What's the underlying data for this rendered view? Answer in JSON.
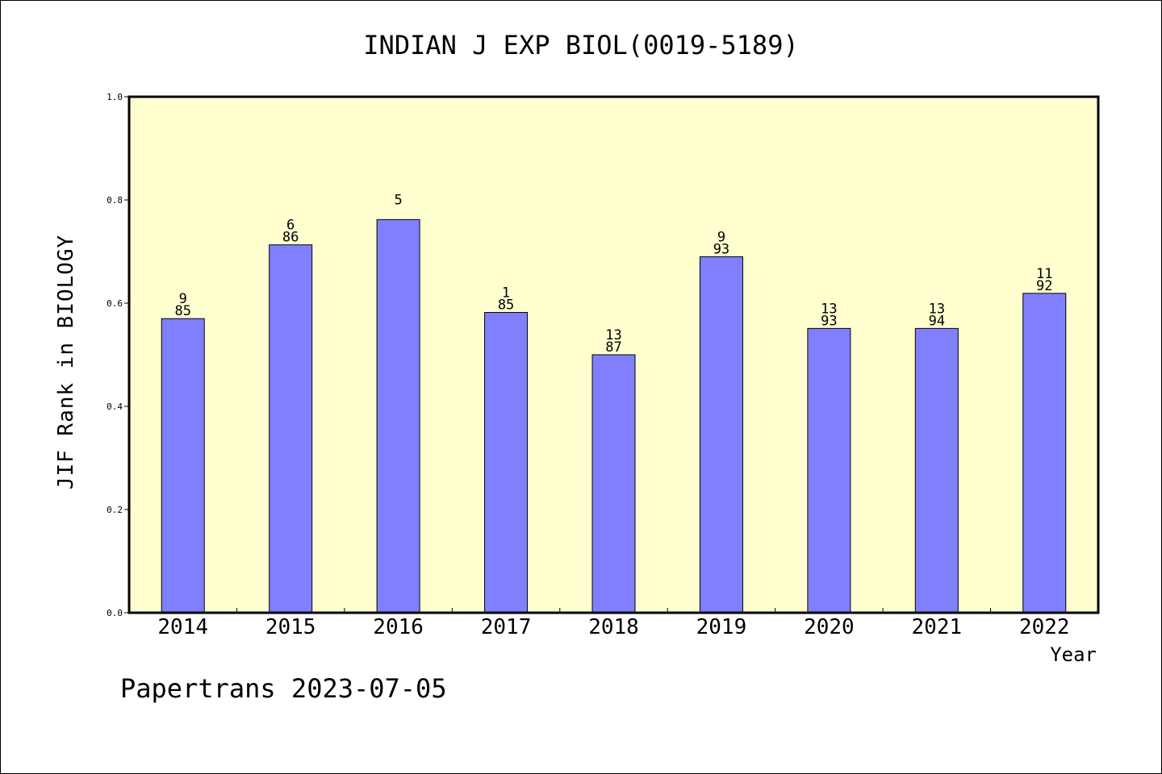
{
  "chart_data": {
    "type": "bar",
    "title": "INDIAN J EXP BIOL(0019-5189)",
    "xlabel": "Year",
    "ylabel": "JIF Rank in BIOLOGY",
    "ylim": [
      0,
      1.0
    ],
    "yticks": [
      "0.0",
      "0.2",
      "0.4",
      "0.6",
      "0.8",
      "1.0"
    ],
    "categories": [
      "2014",
      "2015",
      "2016",
      "2017",
      "2018",
      "2019",
      "2020",
      "2021",
      "2022"
    ],
    "values": [
      0.57,
      0.713,
      0.762,
      0.582,
      0.5,
      0.69,
      0.551,
      0.551,
      0.619
    ],
    "labels_top": [
      "9",
      "6",
      "5",
      "1",
      "13",
      "9",
      "13",
      "13",
      "11"
    ],
    "labels_bottom": [
      "85",
      "86",
      "",
      "85",
      "87",
      "93",
      "93",
      "94",
      "92"
    ],
    "grid": false,
    "legend": "none"
  },
  "footer": "Papertrans 2023-07-05",
  "colors": {
    "plot_background": "#FFFFD0",
    "bar_fill": "#8080FF",
    "bar_stroke": "#000000",
    "axis": "#000000"
  }
}
